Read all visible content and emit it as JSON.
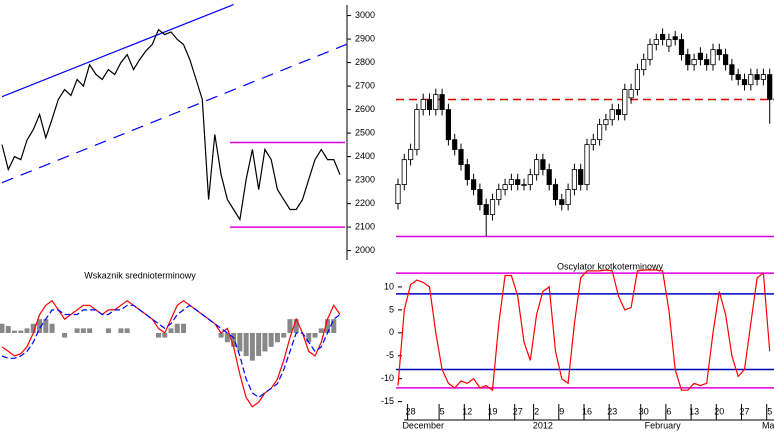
{
  "chart_data": [
    {
      "type": "line",
      "color": "#000000",
      "values": [
        2451,
        2345,
        2400,
        2387,
        2470,
        2515,
        2579,
        2480,
        2560,
        2643,
        2685,
        2660,
        2728,
        2700,
        2791,
        2750,
        2728,
        2770,
        2749,
        2800,
        2834,
        2770,
        2813,
        2850,
        2877,
        2940,
        2919,
        2930,
        2898,
        2877,
        2813,
        2728,
        2643,
        2217,
        2494,
        2323,
        2217,
        2175,
        2132,
        2302,
        2430,
        2260,
        2430,
        2387,
        2260,
        2217,
        2175,
        2175,
        2217,
        2302,
        2387,
        2430,
        2387,
        2387,
        2323
      ],
      "ylim": [
        1960,
        3045
      ],
      "yticks": [
        2000,
        2100,
        2200,
        2300,
        2400,
        2500,
        2600,
        2700,
        2800,
        2900,
        3000
      ],
      "levels": [
        {
          "value": 2460,
          "color": "#e000e0"
        },
        {
          "value": 2100,
          "color": "#e000e0"
        }
      ],
      "trendlines": [
        {
          "color": "#0000ff",
          "dash": false,
          "x": [
            0,
            37
          ],
          "y": [
            2655,
            3047
          ]
        },
        {
          "color": "#0000ff",
          "dash": true,
          "x": [
            0,
            55
          ],
          "y": [
            2289,
            2877
          ]
        }
      ]
    },
    {
      "type": "candlestick",
      "open": [
        2200,
        2281,
        2387,
        2430,
        2600,
        2643,
        2600,
        2664,
        2600,
        2472,
        2430,
        2366,
        2302,
        2260,
        2196,
        2153,
        2217,
        2260,
        2281,
        2302,
        2281,
        2281,
        2323,
        2387,
        2345,
        2281,
        2217,
        2196,
        2260,
        2345,
        2281,
        2451,
        2472,
        2536,
        2557,
        2600,
        2579,
        2650,
        2685,
        2770,
        2813,
        2877,
        2920,
        2870,
        2910,
        2898,
        2834,
        2791,
        2840,
        2813,
        2791,
        2855,
        2834,
        2791,
        2749,
        2728,
        2706,
        2749,
        2728,
        2749
      ],
      "high": [
        2306,
        2412,
        2455,
        2625,
        2668,
        2668,
        2689,
        2689,
        2625,
        2497,
        2455,
        2391,
        2327,
        2285,
        2221,
        2242,
        2285,
        2306,
        2327,
        2327,
        2306,
        2348,
        2412,
        2412,
        2370,
        2306,
        2242,
        2285,
        2370,
        2370,
        2476,
        2497,
        2561,
        2582,
        2625,
        2625,
        2710,
        2710,
        2795,
        2838,
        2902,
        2923,
        2945,
        2923,
        2935,
        2923,
        2859,
        2838,
        2865,
        2838,
        2880,
        2880,
        2859,
        2816,
        2774,
        2753,
        2774,
        2774,
        2774,
        2774
      ],
      "low": [
        2175,
        2256,
        2362,
        2405,
        2575,
        2575,
        2575,
        2575,
        2447,
        2405,
        2341,
        2277,
        2235,
        2171,
        2060,
        2128,
        2192,
        2235,
        2256,
        2256,
        2256,
        2256,
        2298,
        2320,
        2256,
        2192,
        2171,
        2171,
        2235,
        2256,
        2256,
        2426,
        2447,
        2511,
        2532,
        2554,
        2554,
        2625,
        2660,
        2745,
        2788,
        2852,
        2873,
        2845,
        2873,
        2809,
        2766,
        2766,
        2788,
        2766,
        2766,
        2809,
        2766,
        2724,
        2703,
        2681,
        2681,
        2703,
        2703,
        2540
      ],
      "close": [
        2281,
        2387,
        2430,
        2600,
        2643,
        2600,
        2664,
        2600,
        2472,
        2430,
        2366,
        2302,
        2260,
        2196,
        2153,
        2217,
        2260,
        2281,
        2302,
        2281,
        2281,
        2323,
        2387,
        2345,
        2281,
        2217,
        2196,
        2260,
        2345,
        2281,
        2451,
        2472,
        2536,
        2557,
        2600,
        2579,
        2685,
        2685,
        2770,
        2813,
        2877,
        2898,
        2898,
        2898,
        2898,
        2834,
        2791,
        2813,
        2813,
        2791,
        2855,
        2834,
        2791,
        2749,
        2728,
        2706,
        2749,
        2728,
        2749,
        2643
      ],
      "ylim": [
        1960,
        3045
      ],
      "levels": [
        {
          "value": 2643,
          "color": "#e00000",
          "dash": true
        },
        {
          "value": 2060,
          "color": "#e000e0"
        }
      ]
    },
    {
      "type": "line",
      "title": "Wskaznik srednioterminowy",
      "ylim": [
        -18,
        13
      ],
      "series": [
        {
          "color": "#ff0000",
          "values": [
            -3,
            -4,
            -5,
            -4.5,
            -3,
            0,
            4,
            6,
            7,
            5,
            3,
            4,
            5,
            6,
            6,
            5,
            4,
            5,
            5,
            6,
            7,
            6,
            5,
            4,
            3,
            1,
            0,
            3,
            6,
            7,
            6,
            5,
            4,
            3,
            2,
            0,
            1,
            -3,
            -9,
            -14,
            -16,
            -15,
            -13,
            -12,
            -10,
            -6,
            -1,
            3,
            0,
            -4,
            -5,
            -2,
            3,
            6,
            4
          ]
        },
        {
          "color": "#0000ff",
          "dash": true,
          "values": [
            -5,
            -5.5,
            -5.5,
            -5,
            -4,
            -2,
            1,
            3,
            5,
            5,
            4,
            4,
            4,
            5,
            5,
            5,
            4,
            4,
            5,
            5,
            6,
            6,
            5,
            4,
            3,
            2,
            1,
            2,
            4,
            5,
            6,
            5,
            4,
            3,
            2,
            1,
            0,
            -1,
            -5,
            -10,
            -13,
            -14,
            -13,
            -12,
            -11,
            -8,
            -4,
            0,
            0,
            -2,
            -4,
            -3,
            0,
            3,
            4
          ]
        }
      ],
      "histogram": {
        "color": "#888888",
        "values": [
          2,
          1.5,
          0.5,
          0.5,
          1,
          2,
          3,
          3,
          2,
          0,
          -1,
          0,
          1,
          1,
          1,
          0,
          0,
          1,
          0,
          1,
          1,
          0,
          0,
          0,
          0,
          -1,
          -1,
          1,
          2,
          2,
          0,
          0,
          0,
          0,
          0,
          -1,
          -2,
          -3,
          -4,
          -5,
          -6,
          -5,
          -4,
          -3,
          -2,
          -1,
          3,
          3,
          0,
          -2,
          -1,
          1,
          3,
          3,
          0
        ]
      }
    },
    {
      "type": "line",
      "title": "Oscylator krotkoterminowy",
      "color": "#ff0000",
      "values": [
        -11.5,
        5,
        10.5,
        11.5,
        11,
        10,
        0,
        -8,
        -11,
        -12,
        -10.5,
        -11,
        -10,
        -12,
        -11.5,
        -12.5,
        2,
        12.5,
        12.5,
        8,
        -2,
        -6,
        4,
        9,
        10,
        -4,
        -10,
        -11,
        2,
        12,
        13.5,
        13.5,
        13.5,
        13.7,
        13.5,
        8,
        5,
        5.5,
        13.5,
        13.7,
        13.7,
        13.7,
        13.5,
        5,
        -8,
        -12.5,
        -12.5,
        -11,
        -11.5,
        -11,
        0,
        9,
        4,
        -5,
        -9.5,
        -8,
        2,
        12,
        13,
        -4
      ],
      "ylim": [
        -19,
        15
      ],
      "yticks": [
        10,
        5,
        0,
        -5,
        -10,
        -15
      ],
      "levels": [
        {
          "value": 8.5,
          "color": "#0000c0"
        },
        {
          "value": -8,
          "color": "#0000c0"
        },
        {
          "value": 13,
          "color": "#e000e0"
        },
        {
          "value": -12,
          "color": "#e000e0"
        }
      ],
      "categories": [
        null,
        null,
        "28",
        null,
        null,
        null,
        null,
        "5",
        null,
        null,
        null,
        "12",
        null,
        null,
        null,
        "19",
        null,
        null,
        null,
        "27",
        null,
        null,
        "2",
        null,
        null,
        null,
        "9",
        null,
        null,
        null,
        "16",
        null,
        null,
        null,
        "23",
        null,
        null,
        null,
        null,
        "30",
        null,
        null,
        null,
        "6",
        null,
        null,
        null,
        "13",
        null,
        null,
        null,
        "20",
        null,
        null,
        null,
        "27",
        null,
        null,
        null,
        "5"
      ],
      "months": [
        null,
        null,
        null,
        null,
        "December",
        null,
        null,
        null,
        null,
        null,
        null,
        null,
        null,
        null,
        null,
        null,
        null,
        null,
        null,
        null,
        null,
        null,
        null,
        "2012",
        null,
        null,
        null,
        null,
        null,
        null,
        null,
        null,
        null,
        null,
        null,
        null,
        null,
        null,
        null,
        null,
        null,
        null,
        "February",
        null,
        null,
        null,
        null,
        null,
        null,
        null,
        null,
        null,
        null,
        null,
        null,
        null,
        null,
        null,
        null,
        "Mar"
      ]
    }
  ]
}
